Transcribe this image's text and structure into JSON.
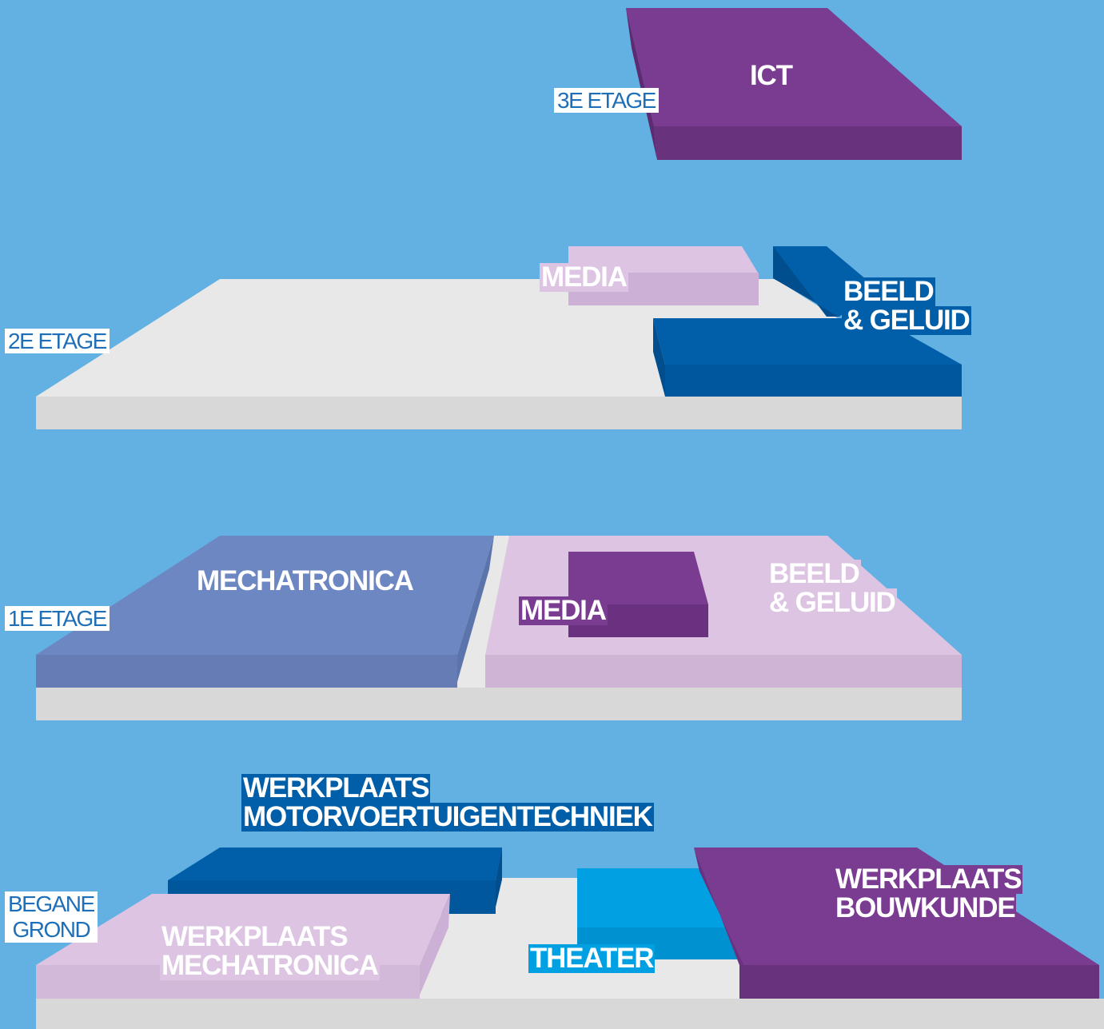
{
  "colors": {
    "background": "#63b0e2",
    "slab": "#e2e2e2",
    "purple": "#7a3c91",
    "lilac": "#dcc4e2",
    "blue": "#005fa8",
    "slate_blue": "#6c87c2",
    "cyan": "#00a0e2"
  },
  "floors": [
    {
      "id": "3e",
      "label": "3E ETAGE",
      "zones": [
        {
          "name": "ICT",
          "color": "purple"
        }
      ]
    },
    {
      "id": "2e",
      "label": "2E ETAGE",
      "zones": [
        {
          "name": "MEDIA",
          "color": "lilac"
        },
        {
          "name_lines": [
            "BEELD",
            "& GELUID"
          ],
          "color": "blue"
        }
      ]
    },
    {
      "id": "1e",
      "label": "1E ETAGE",
      "zones": [
        {
          "name": "MECHATRONICA",
          "color": "slate_blue"
        },
        {
          "name": "MEDIA",
          "color": "purple"
        },
        {
          "name_lines": [
            "BEELD",
            "& GELUID"
          ],
          "color": "lilac"
        }
      ]
    },
    {
      "id": "bg",
      "label_lines": [
        "BEGANE",
        "GROND"
      ],
      "zones": [
        {
          "name_lines": [
            "WERKPLAATS",
            "MOTORVOERTUIGENTECHNIEK"
          ],
          "color": "blue"
        },
        {
          "name_lines": [
            "WERKPLAATS",
            "MECHATRONICA"
          ],
          "color": "lilac"
        },
        {
          "name": "THEATER",
          "color": "cyan"
        },
        {
          "name_lines": [
            "WERKPLAATS",
            "BOUWKUNDE"
          ],
          "color": "purple"
        }
      ]
    }
  ]
}
